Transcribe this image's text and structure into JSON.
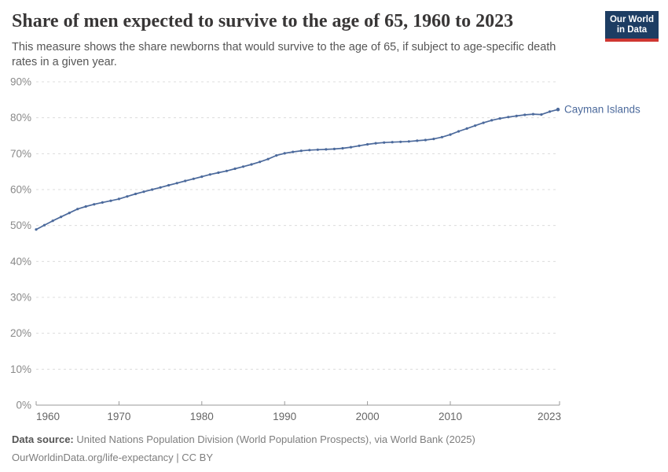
{
  "header": {
    "title": "Share of men expected to survive to the age of 65, 1960 to 2023",
    "subtitle": "This measure shows the share newborns that would survive to the age of 65, if subject to age-specific death rates in a given year."
  },
  "logo": {
    "line1": "Our World",
    "line2": "in Data",
    "bg_color": "#1d3d63",
    "accent_color": "#cf3631"
  },
  "chart_data": {
    "type": "line",
    "title": "Share of men expected to survive to the age of 65, 1960 to 2023",
    "xlabel": "",
    "ylabel": "",
    "xlim": [
      1960,
      2023
    ],
    "ylim": [
      0,
      90
    ],
    "grid": "horizontal-dashed",
    "legend_position": "end-of-line-label",
    "x_ticks": [
      1960,
      1970,
      1980,
      1990,
      2000,
      2010,
      2023
    ],
    "y_ticks": [
      0,
      10,
      20,
      30,
      40,
      50,
      60,
      70,
      80,
      90
    ],
    "y_tick_labels": [
      "0%",
      "10%",
      "20%",
      "30%",
      "40%",
      "50%",
      "60%",
      "70%",
      "80%",
      "90%"
    ],
    "series": [
      {
        "name": "Cayman Islands",
        "color": "#4C6A9C",
        "x": [
          1960,
          1961,
          1962,
          1963,
          1964,
          1965,
          1966,
          1967,
          1968,
          1969,
          1970,
          1971,
          1972,
          1973,
          1974,
          1975,
          1976,
          1977,
          1978,
          1979,
          1980,
          1981,
          1982,
          1983,
          1984,
          1985,
          1986,
          1987,
          1988,
          1989,
          1990,
          1991,
          1992,
          1993,
          1994,
          1995,
          1996,
          1997,
          1998,
          1999,
          2000,
          2001,
          2002,
          2003,
          2004,
          2005,
          2006,
          2007,
          2008,
          2009,
          2010,
          2011,
          2012,
          2013,
          2014,
          2015,
          2016,
          2017,
          2018,
          2019,
          2020,
          2021,
          2022,
          2023
        ],
        "values": [
          48.9,
          50.1,
          51.3,
          52.4,
          53.5,
          54.6,
          55.3,
          55.9,
          56.4,
          56.9,
          57.4,
          58.1,
          58.8,
          59.4,
          60.0,
          60.6,
          61.2,
          61.8,
          62.4,
          63.0,
          63.6,
          64.2,
          64.7,
          65.2,
          65.8,
          66.4,
          67.0,
          67.7,
          68.5,
          69.5,
          70.1,
          70.5,
          70.8,
          71.0,
          71.1,
          71.2,
          71.3,
          71.5,
          71.8,
          72.2,
          72.6,
          72.9,
          73.1,
          73.2,
          73.3,
          73.4,
          73.6,
          73.8,
          74.1,
          74.6,
          75.3,
          76.2,
          77.0,
          77.8,
          78.6,
          79.3,
          79.8,
          80.2,
          80.5,
          80.8,
          81.0,
          80.9,
          81.7,
          82.3
        ]
      }
    ]
  },
  "footer": {
    "source_label": "Data source:",
    "source_text": " United Nations Population Division (World Population Prospects), via World Bank (2025)",
    "link_text": "OurWorldinData.org/life-expectancy | CC BY"
  }
}
